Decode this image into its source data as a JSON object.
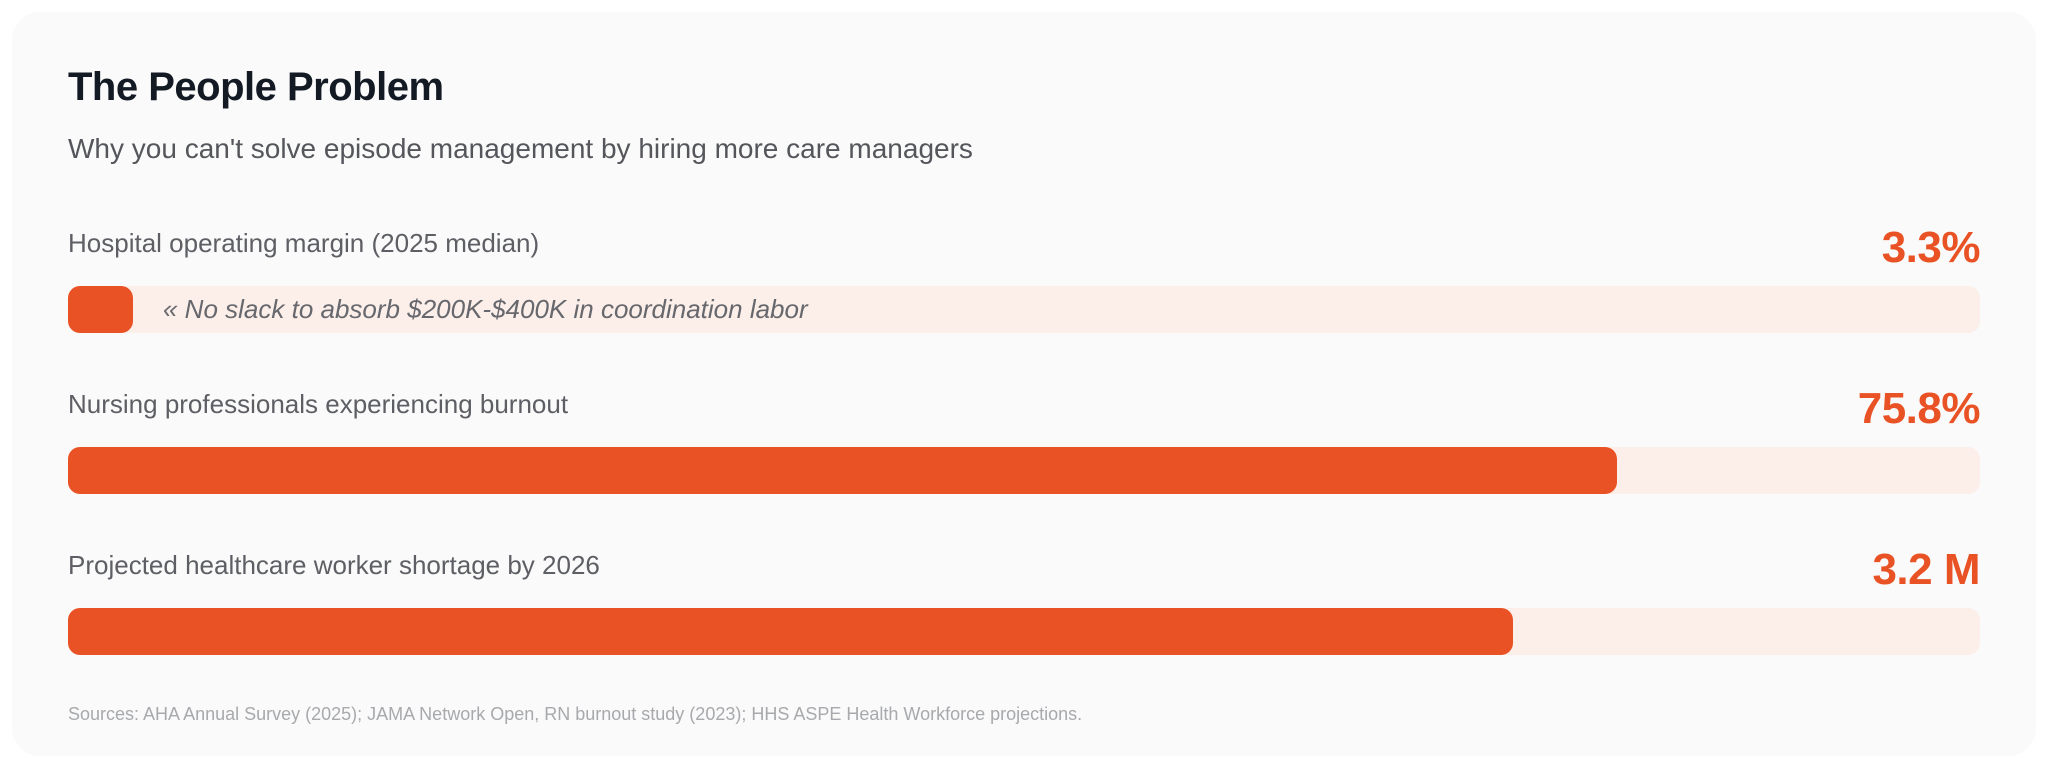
{
  "header": {
    "title": "The People Problem",
    "subtitle": "Why you can't solve episode management by hiring more care managers"
  },
  "colors": {
    "accent_orange": "#e95224",
    "track_pink": "#fceee9",
    "card_background": "#fafafa",
    "title_text": "#131a24",
    "label_gray": "#5d5f64",
    "sources_gray": "#a7a9ac"
  },
  "chart_data": {
    "type": "bar",
    "orientation": "horizontal",
    "title": "The People Problem",
    "subtitle": "Why you can't solve episode management by hiring more care managers",
    "grid": false,
    "legend": false,
    "rows": [
      {
        "label": "Hospital operating margin (2025 median)",
        "value": 3.3,
        "unit": "%",
        "value_label": "3.3%",
        "fill_percent": 3.4,
        "annotation": "« No slack to absorb $200K-$400K in coordination labor"
      },
      {
        "label": "Nursing professionals experiencing burnout",
        "value": 75.8,
        "unit": "%",
        "value_label": "75.8%",
        "fill_percent": 81.0
      },
      {
        "label": "Projected healthcare worker shortage by 2026",
        "value": 3.2,
        "unit": "M",
        "value_label": "3.2 M",
        "fill_percent": 75.6
      }
    ]
  },
  "footer": {
    "sources": "Sources: AHA Annual Survey (2025); JAMA Network Open, RN burnout study (2023); HHS ASPE Health Workforce projections."
  }
}
